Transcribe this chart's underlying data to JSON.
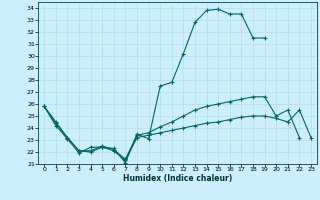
{
  "xlabel": "Humidex (Indice chaleur)",
  "bg_color": "#cceeff",
  "grid_color": "#aadddd",
  "line_color": "#006666",
  "xlim": [
    -0.5,
    23.5
  ],
  "ylim": [
    21,
    34.5
  ],
  "yticks": [
    21,
    22,
    23,
    24,
    25,
    26,
    27,
    28,
    29,
    30,
    31,
    32,
    33,
    34
  ],
  "xticks": [
    0,
    1,
    2,
    3,
    4,
    5,
    6,
    7,
    8,
    9,
    10,
    11,
    12,
    13,
    14,
    15,
    16,
    17,
    18,
    19,
    20,
    21,
    22,
    23
  ],
  "curve1_x": [
    0,
    1,
    2,
    3,
    4,
    5,
    6,
    7,
    8,
    9,
    10,
    11,
    12,
    13,
    14,
    15,
    16,
    17,
    18,
    19
  ],
  "curve1_y": [
    25.8,
    24.2,
    23.1,
    21.9,
    22.4,
    22.4,
    22.3,
    21.1,
    23.5,
    23.1,
    27.5,
    27.8,
    30.2,
    32.8,
    33.8,
    33.9,
    33.5,
    33.5,
    31.5,
    31.5
  ],
  "curve2_x": [
    0,
    1,
    2,
    3,
    4,
    5,
    6,
    7,
    8,
    9,
    10,
    11,
    12,
    13,
    14,
    15,
    16,
    17,
    18,
    19,
    20,
    21,
    22
  ],
  "curve2_y": [
    25.8,
    24.5,
    23.2,
    22.1,
    22.1,
    22.5,
    22.2,
    21.4,
    23.4,
    23.6,
    24.1,
    24.5,
    25.0,
    25.5,
    25.8,
    26.0,
    26.2,
    26.4,
    26.6,
    26.6,
    25.0,
    25.5,
    23.2
  ],
  "curve3_x": [
    0,
    1,
    2,
    3,
    4,
    5,
    6,
    7,
    8,
    9,
    10,
    11,
    12,
    13,
    14,
    15,
    16,
    17,
    18,
    19,
    20,
    21,
    22,
    23
  ],
  "curve3_y": [
    25.8,
    24.4,
    23.2,
    22.1,
    22.0,
    22.4,
    22.1,
    21.3,
    23.2,
    23.4,
    23.6,
    23.8,
    24.0,
    24.2,
    24.4,
    24.5,
    24.7,
    24.9,
    25.0,
    25.0,
    24.8,
    24.5,
    25.5,
    23.2
  ]
}
